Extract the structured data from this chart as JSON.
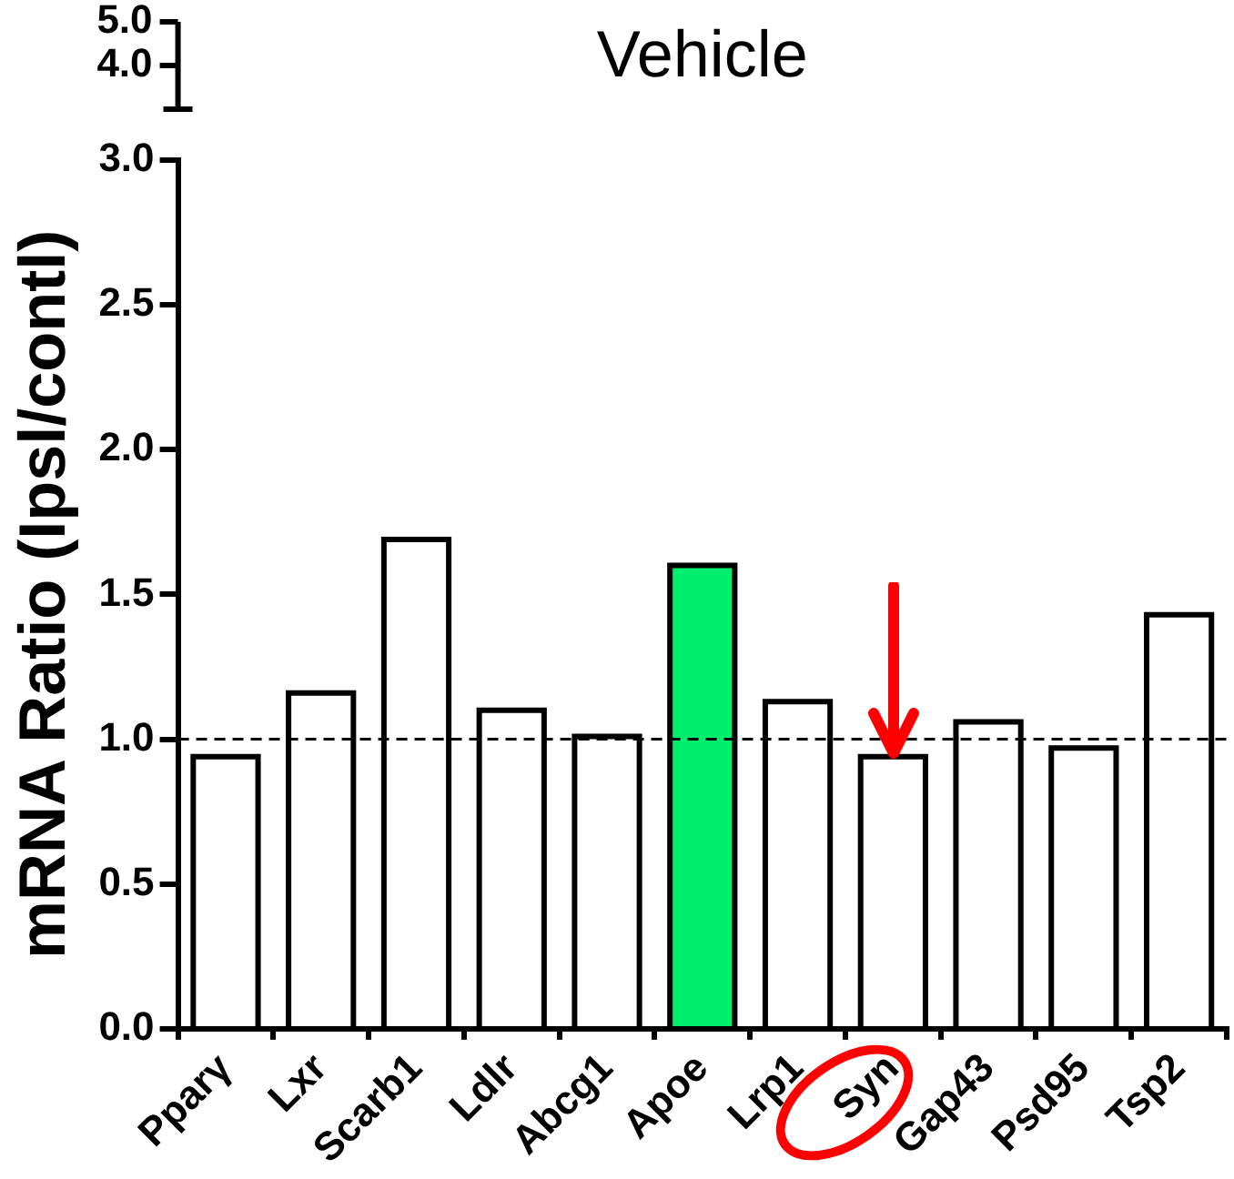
{
  "chart_data": {
    "type": "bar",
    "title": "Vehicle",
    "ylabel": "mRNA Ratio (Ipsl/contl)",
    "categories": [
      "Pparγ",
      "Lxr",
      "Scarb1",
      "Ldlr",
      "Abcg1",
      "Apoe",
      "Lrp1",
      "Syn",
      "Gap43",
      "Psd95",
      "Tsp2"
    ],
    "values": [
      0.94,
      1.16,
      1.69,
      1.1,
      1.01,
      1.6,
      1.13,
      0.94,
      1.06,
      0.97,
      1.43
    ],
    "colors": [
      "#ffffff",
      "#ffffff",
      "#ffffff",
      "#ffffff",
      "#ffffff",
      "#00ee6e",
      "#ffffff",
      "#ffffff",
      "#ffffff",
      "#ffffff",
      "#ffffff"
    ],
    "ylim": [
      0,
      3
    ],
    "yticks": [
      {
        "value": 0,
        "label": "0.0"
      },
      {
        "value": 0.5,
        "label": "0.5"
      },
      {
        "value": 1,
        "label": "1.0"
      },
      {
        "value": 1.5,
        "label": "1.5"
      },
      {
        "value": 2,
        "label": "2.0"
      },
      {
        "value": 2.5,
        "label": "2.5"
      },
      {
        "value": 3,
        "label": "3.0"
      }
    ],
    "annotations": [
      "5.0",
      "4.0"
    ],
    "ref_lines": [
      {
        "axis": "y",
        "value": 1,
        "line_style": "dashed"
      }
    ],
    "legend": false
  }
}
